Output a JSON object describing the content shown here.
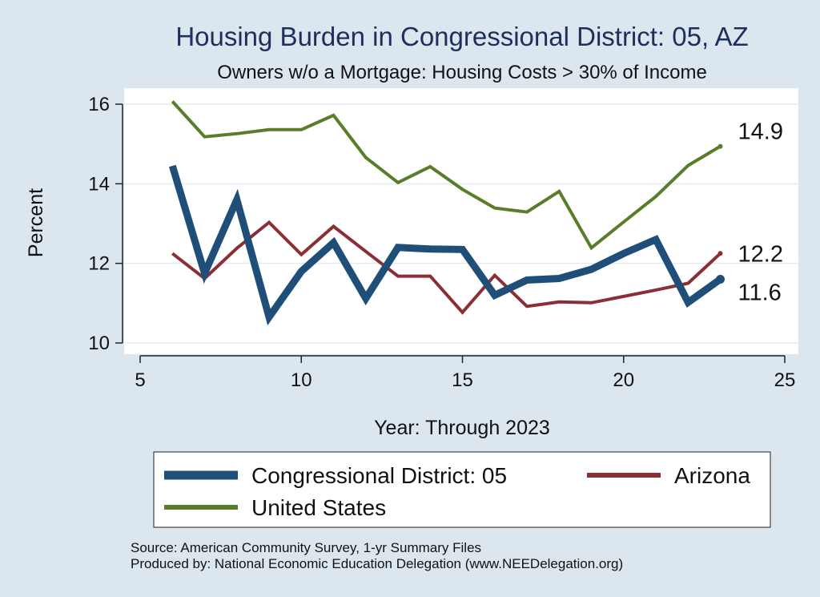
{
  "chart_data": {
    "type": "line",
    "title": "Housing Burden in Congressional District:  05, AZ",
    "subtitle": "Owners w/o a Mortgage: Housing Costs > 30% of Income",
    "xlabel": "Year: Through 2023",
    "ylabel": "Percent",
    "xlim": [
      5,
      25
    ],
    "ylim": [
      10,
      16
    ],
    "xticks": [
      5,
      10,
      15,
      20,
      25
    ],
    "yticks": [
      10,
      12,
      14,
      16
    ],
    "grid": true,
    "legend_position": "bottom",
    "series": [
      {
        "name": "Congressional District:  05",
        "color": "#1f4e79",
        "end_label": "11.6",
        "points": [
          [
            6,
            14.45
          ],
          [
            7,
            11.75
          ],
          [
            8,
            13.6
          ],
          [
            9,
            10.65
          ],
          [
            10,
            11.8
          ],
          [
            11,
            12.52
          ],
          [
            12,
            11.12
          ],
          [
            13,
            12.4
          ],
          [
            14,
            12.36
          ],
          [
            15,
            12.35
          ],
          [
            16,
            11.2
          ],
          [
            17,
            11.58
          ],
          [
            18,
            11.62
          ],
          [
            19,
            11.85
          ],
          [
            20,
            12.25
          ],
          [
            21,
            12.6
          ],
          [
            22,
            11.02
          ],
          [
            23,
            11.6
          ]
        ]
      },
      {
        "name": "Arizona",
        "color": "#8b2e35",
        "end_label": "12.2",
        "points": [
          [
            6,
            12.25
          ],
          [
            7,
            11.62
          ],
          [
            8,
            12.38
          ],
          [
            9,
            13.03
          ],
          [
            10,
            12.22
          ],
          [
            11,
            12.93
          ],
          [
            12,
            12.3
          ],
          [
            13,
            11.68
          ],
          [
            14,
            11.68
          ],
          [
            15,
            10.77
          ],
          [
            16,
            11.7
          ],
          [
            17,
            10.92
          ],
          [
            18,
            11.03
          ],
          [
            19,
            11.01
          ],
          [
            20,
            11.17
          ],
          [
            21,
            11.33
          ],
          [
            22,
            11.5
          ],
          [
            23,
            12.25
          ]
        ]
      },
      {
        "name": "United States",
        "color": "#5a7d2a",
        "end_label": "14.9",
        "points": [
          [
            6,
            16.07
          ],
          [
            7,
            15.18
          ],
          [
            8,
            15.26
          ],
          [
            9,
            15.36
          ],
          [
            10,
            15.36
          ],
          [
            11,
            15.72
          ],
          [
            12,
            14.66
          ],
          [
            13,
            14.03
          ],
          [
            14,
            14.43
          ],
          [
            15,
            13.86
          ],
          [
            16,
            13.39
          ],
          [
            17,
            13.29
          ],
          [
            18,
            13.81
          ],
          [
            19,
            12.39
          ],
          [
            20,
            13.04
          ],
          [
            21,
            13.68
          ],
          [
            22,
            14.46
          ],
          [
            23,
            14.94
          ]
        ]
      }
    ]
  },
  "source_note": "Source: American Community Survey, 1-yr Summary Files",
  "producer_note": "Produced by: National Economic Education Delegation (www.NEEDelegation.org)"
}
